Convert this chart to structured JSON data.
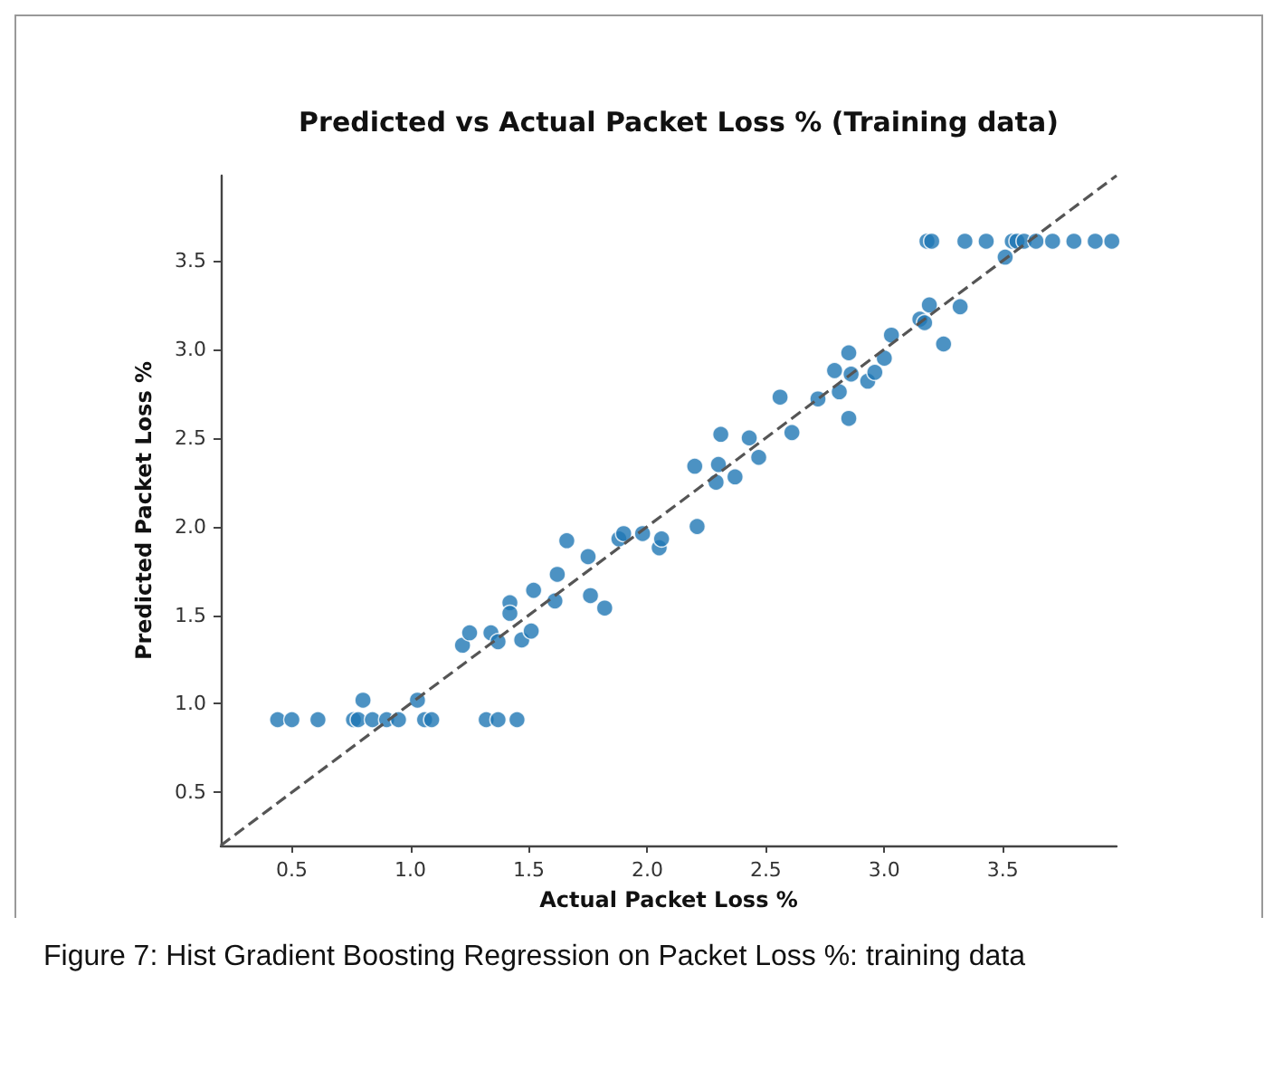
{
  "chart_data": {
    "type": "scatter",
    "title": "Predicted vs Actual Packet Loss % (Training data)",
    "xlabel": "Actual Packet Loss %",
    "ylabel": "Predicted Packet Loss %",
    "annotations": [
      "Figure 7: Hist Gradient Boosting Regression on Packet Loss %: training data"
    ],
    "xlim": [
      0.2,
      3.98
    ],
    "ylim": [
      0.2,
      3.98
    ],
    "xticks": [
      0.5,
      {
        "value": 1,
        "label": "1.0"
      },
      1.5,
      {
        "value": 2,
        "label": "2.0"
      },
      2.5,
      {
        "value": 3,
        "label": "3.0"
      },
      3.5
    ],
    "yticks": [
      0.5,
      {
        "value": 1,
        "label": "1.0"
      },
      1.5,
      {
        "value": 2,
        "label": "2.0"
      },
      2.5,
      {
        "value": 3,
        "label": "3.0"
      },
      3.5
    ],
    "grid": false,
    "marker": "circle",
    "series": [
      {
        "color": "#1f77b4",
        "x": [
          0.44,
          0.5,
          0.61,
          0.76,
          0.78,
          0.84,
          0.9,
          0.95,
          1.06,
          1.09,
          1.32,
          1.37,
          1.45,
          0.8,
          1.03,
          1.22,
          1.25,
          1.34,
          1.37,
          1.42,
          1.42,
          1.47,
          1.51,
          1.52,
          1.61,
          1.62,
          1.66,
          1.75,
          1.76,
          1.82,
          1.88,
          1.9,
          1.98,
          2.05,
          2.06,
          2.2,
          2.21,
          2.29,
          2.3,
          2.31,
          2.37,
          2.43,
          2.47,
          2.56,
          2.61,
          2.72,
          2.79,
          2.81,
          2.85,
          2.85,
          2.86,
          2.93,
          2.96,
          3.0,
          3.03,
          3.15,
          3.17,
          3.19,
          3.25,
          3.32,
          3.51,
          3.18,
          3.2,
          3.34,
          3.43,
          3.54,
          3.56,
          3.59,
          3.64,
          3.71,
          3.8,
          3.89,
          3.96
        ],
        "values": [
          0.91,
          0.91,
          0.91,
          0.91,
          0.91,
          0.91,
          0.91,
          0.91,
          0.91,
          0.91,
          0.91,
          0.91,
          0.91,
          1.02,
          1.02,
          1.33,
          1.4,
          1.4,
          1.35,
          1.57,
          1.51,
          1.36,
          1.41,
          1.64,
          1.58,
          1.73,
          1.92,
          1.83,
          1.61,
          1.54,
          1.93,
          1.96,
          1.96,
          1.88,
          1.93,
          2.34,
          2.0,
          2.25,
          2.35,
          2.52,
          2.28,
          2.5,
          2.39,
          2.73,
          2.53,
          2.72,
          2.88,
          2.76,
          2.98,
          2.61,
          2.86,
          2.82,
          2.87,
          2.95,
          3.08,
          3.17,
          3.15,
          3.25,
          3.03,
          3.24,
          3.52,
          3.61,
          3.61,
          3.61,
          3.61,
          3.61,
          3.61,
          3.61,
          3.61,
          3.61,
          3.61,
          3.61,
          3.61
        ]
      },
      {
        "type": "line",
        "color": "#555555",
        "line_style": "dashed",
        "marker": "none",
        "x": [
          0.2,
          3.98
        ],
        "values": [
          0.2,
          3.98
        ]
      }
    ]
  }
}
